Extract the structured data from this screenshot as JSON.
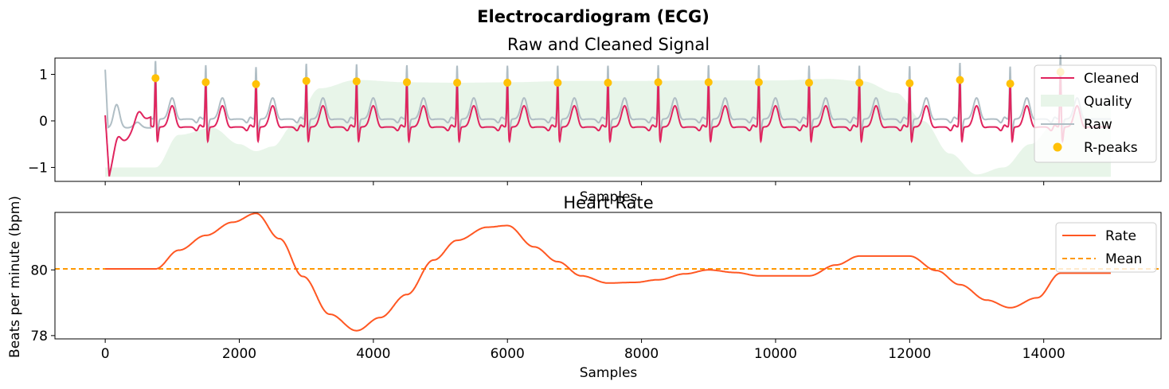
{
  "figure_title": "Electrocardiogram (ECG)",
  "colors": {
    "cleaned": "#E0245E",
    "raw": "#B0BEC5",
    "quality": "#E8F5E9",
    "rpeaks": "#FFC107",
    "rate": "#FF5722",
    "mean": "#FF9800"
  },
  "chart_data": [
    {
      "type": "line",
      "title": "Raw and Cleaned Signal",
      "xlabel": "Samples",
      "ylabel": "",
      "xlim": [
        -750,
        15750
      ],
      "ylim": [
        -1.3,
        1.35
      ],
      "yticks": [
        -1,
        0,
        1
      ],
      "yticklabels": [
        "−1",
        "0",
        "1"
      ],
      "xticks": [
        0,
        2000,
        4000,
        6000,
        8000,
        10000,
        12000,
        14000
      ],
      "legend": {
        "position": "top-right",
        "entries": [
          "Cleaned",
          "Quality",
          "Raw",
          "R-peaks"
        ]
      },
      "r_peaks": {
        "x": [
          750,
          1500,
          2250,
          3000,
          3750,
          4500,
          5250,
          6000,
          6750,
          7500,
          8250,
          9000,
          9750,
          10500,
          11250,
          12000,
          12750,
          13500,
          14250
        ],
        "y": [
          0.92,
          0.83,
          0.79,
          0.86,
          0.85,
          0.83,
          0.82,
          0.82,
          0.82,
          0.82,
          0.83,
          0.83,
          0.83,
          0.82,
          0.82,
          0.81,
          0.88,
          0.8,
          1.05
        ]
      },
      "quality": {
        "baseline": -1.2,
        "x": [
          0,
          750,
          1100,
          1600,
          2000,
          2250,
          2500,
          2800,
          3200,
          3750,
          4500,
          5250,
          6000,
          7000,
          8000,
          9000,
          10000,
          10800,
          11300,
          11800,
          12200,
          12600,
          13000,
          13400,
          13800,
          14200,
          14800,
          15000
        ],
        "y": [
          -1.0,
          -1.0,
          -0.3,
          -0.15,
          -0.5,
          -0.65,
          -0.55,
          -0.1,
          0.7,
          0.88,
          0.83,
          0.82,
          0.83,
          0.86,
          0.86,
          0.87,
          0.87,
          0.9,
          0.85,
          0.6,
          0.0,
          -0.7,
          -1.15,
          -1.0,
          -0.5,
          0.0,
          0.4,
          0.45
        ]
      }
    },
    {
      "type": "line",
      "title": "Heart Rate",
      "xlabel": "Samples",
      "ylabel": "Beats per minute (bpm)",
      "xlim": [
        -750,
        15750
      ],
      "ylim": [
        77.9,
        81.75
      ],
      "yticks": [
        78,
        80
      ],
      "xticks": [
        0,
        2000,
        4000,
        6000,
        8000,
        10000,
        12000,
        14000
      ],
      "xticklabels": [
        "0",
        "2000",
        "4000",
        "6000",
        "8000",
        "10000",
        "12000",
        "14000"
      ],
      "legend": {
        "position": "top-right",
        "entries": [
          "Rate",
          "Mean"
        ]
      },
      "mean": 80.03,
      "series": [
        {
          "name": "Rate",
          "x": [
            0,
            750,
            1100,
            1500,
            1900,
            2250,
            2600,
            2950,
            3350,
            3750,
            4100,
            4500,
            4900,
            5250,
            5700,
            6000,
            6400,
            6750,
            7100,
            7500,
            7900,
            8250,
            8650,
            9000,
            9400,
            9750,
            10200,
            10500,
            10900,
            11250,
            11700,
            12000,
            12400,
            12750,
            13150,
            13500,
            13900,
            14250,
            15000
          ],
          "y": [
            80.03,
            80.03,
            80.6,
            81.05,
            81.45,
            81.72,
            80.95,
            79.8,
            78.65,
            78.15,
            78.55,
            79.25,
            80.3,
            80.9,
            81.3,
            81.35,
            80.7,
            80.25,
            79.82,
            79.6,
            79.62,
            79.7,
            79.88,
            80.0,
            79.92,
            79.82,
            79.82,
            79.82,
            80.15,
            80.42,
            80.42,
            80.42,
            79.98,
            79.55,
            79.08,
            78.85,
            79.15,
            79.9,
            79.9
          ]
        }
      ]
    }
  ]
}
